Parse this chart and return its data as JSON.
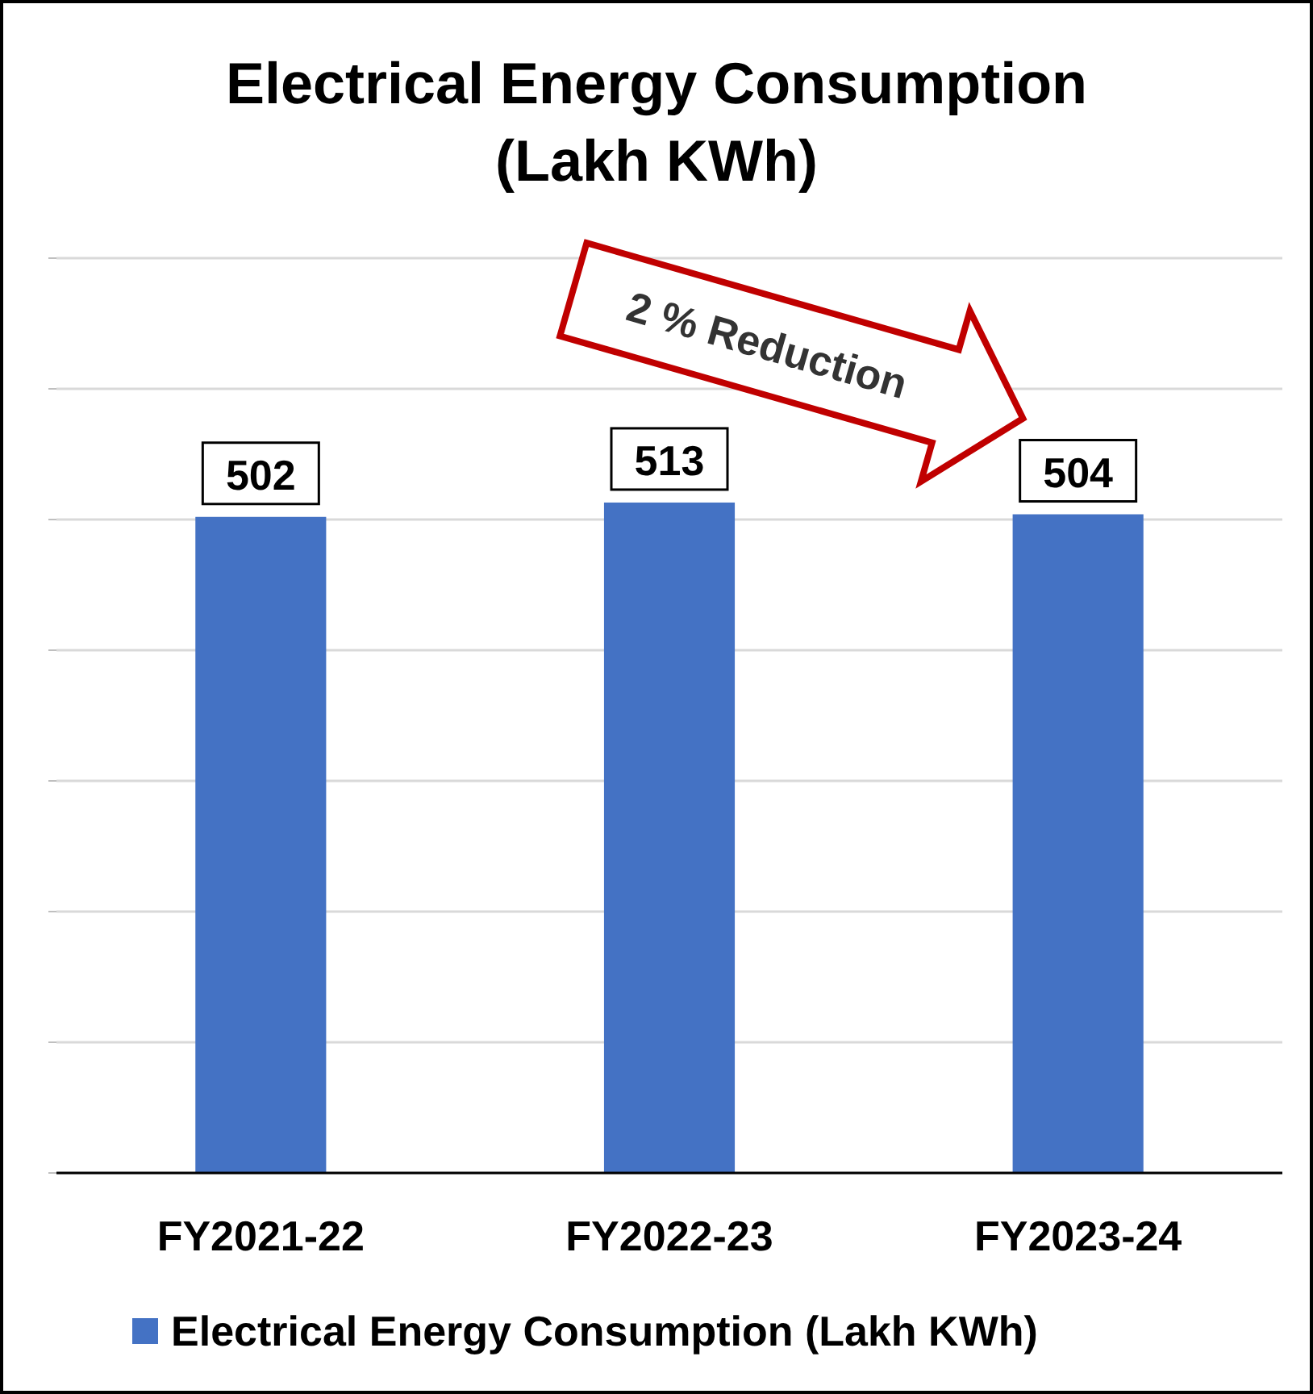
{
  "chart_data": {
    "type": "bar",
    "title": "Electrical Energy Consumption\n(Lakh KWh)",
    "categories": [
      "FY2021-22",
      "FY2022-23",
      "FY2023-24"
    ],
    "series": [
      {
        "name": "Electrical Energy Consumption (Lakh KWh)",
        "color": "#4472c4",
        "values": [
          502,
          513,
          504
        ]
      }
    ],
    "ylim": [
      0,
      700
    ],
    "yticks": [
      {
        "value": 0,
        "label": null
      },
      {
        "value": 100,
        "label": null
      },
      {
        "value": 200,
        "label": null
      },
      {
        "value": 300,
        "label": null
      },
      {
        "value": 400,
        "label": null
      },
      {
        "value": 500,
        "label": null
      },
      {
        "value": 600,
        "label": null
      },
      {
        "value": 700,
        "label": null
      }
    ],
    "tick_labels": "x",
    "grid": "y",
    "data_labels": true,
    "legend": "bottom",
    "annotations": [
      "2 % Reduction"
    ]
  }
}
